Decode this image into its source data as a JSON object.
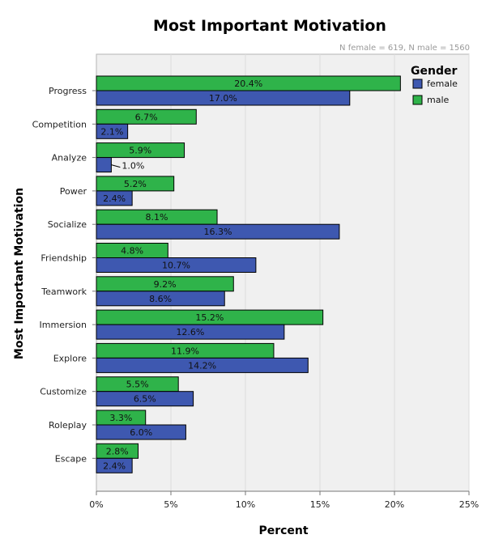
{
  "chart_data": {
    "type": "bar",
    "orientation": "horizontal",
    "title": "Most Important Motivation",
    "subtitle": "N female = 619, N male = 1560",
    "xlabel": "Percent",
    "ylabel": "Most Important Motivation",
    "xlim": [
      0,
      25
    ],
    "xticks": [
      "0%",
      "5%",
      "10%",
      "15%",
      "20%",
      "25%"
    ],
    "grid": true,
    "legend": {
      "title": "Gender",
      "position": "top-right"
    },
    "categories": [
      "Progress",
      "Competition",
      "Analyze",
      "Power",
      "Socialize",
      "Friendship",
      "Teamwork",
      "Immersion",
      "Explore",
      "Customize",
      "Roleplay",
      "Escape"
    ],
    "series": [
      {
        "name": "male",
        "color": "#2fb34a",
        "values": [
          20.4,
          6.7,
          5.9,
          5.2,
          8.1,
          4.8,
          9.2,
          15.2,
          11.9,
          5.5,
          3.3,
          2.8
        ],
        "labels": [
          "20.4%",
          "6.7%",
          "5.9%",
          "5.2%",
          "8.1%",
          "4.8%",
          "9.2%",
          "15.2%",
          "11.9%",
          "5.5%",
          "3.3%",
          "2.8%"
        ]
      },
      {
        "name": "female",
        "color": "#3e58b0",
        "values": [
          17.0,
          2.1,
          1.0,
          2.4,
          16.3,
          10.7,
          8.6,
          12.6,
          14.2,
          6.5,
          6.0,
          2.4
        ],
        "labels": [
          "17.0%",
          "2.1%",
          "1.0%",
          "2.4%",
          "16.3%",
          "10.7%",
          "8.6%",
          "12.6%",
          "14.2%",
          "6.5%",
          "6.0%",
          "2.4%"
        ]
      }
    ],
    "legend_order": [
      "female",
      "male"
    ]
  }
}
